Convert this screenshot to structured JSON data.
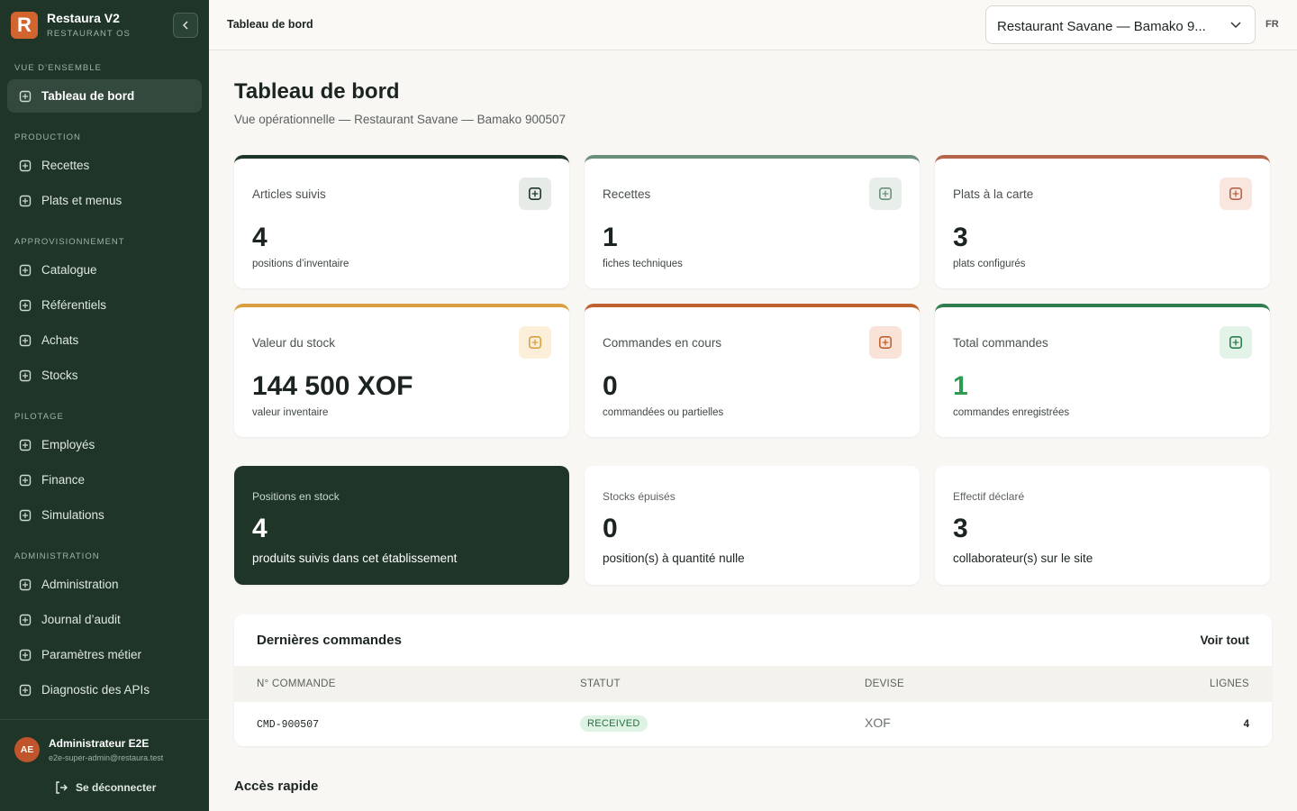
{
  "sidebar": {
    "logo": "R",
    "app_name": "Restaura V2",
    "app_subtitle": "RESTAURANT OS",
    "sections": [
      {
        "title": "VUE D’ENSEMBLE",
        "items": [
          "Tableau de bord"
        ]
      },
      {
        "title": "PRODUCTION",
        "items": [
          "Recettes",
          "Plats et menus"
        ]
      },
      {
        "title": "APPROVISIONNEMENT",
        "items": [
          "Catalogue",
          "Référentiels",
          "Achats",
          "Stocks"
        ]
      },
      {
        "title": "PILOTAGE",
        "items": [
          "Employés",
          "Finance",
          "Simulations"
        ]
      },
      {
        "title": "ADMINISTRATION",
        "items": [
          "Administration",
          "Journal d’audit",
          "Paramètres métier",
          "Diagnostic des APIs"
        ]
      }
    ],
    "user": {
      "initials": "AE",
      "name": "Administrateur E2E",
      "email": "e2e-super-admin@restaura.test",
      "logout": "Se déconnecter"
    }
  },
  "topbar": {
    "breadcrumb": "Tableau de bord",
    "restaurant_select": "Restaurant Savane — Bamako 9...",
    "language": "FR"
  },
  "header": {
    "title": "Tableau de bord",
    "subtitle": "Vue opérationnelle — Restaurant Savane — Bamako 900507"
  },
  "kpi_cards": [
    {
      "label": "Articles suivis",
      "value": 4,
      "caption": "positions d’inventaire"
    },
    {
      "label": "Recettes",
      "value": 1,
      "caption": "fiches techniques"
    },
    {
      "label": "Plats à la carte",
      "value": 3,
      "caption": "plats configurés"
    },
    {
      "label": "Valeur du stock",
      "value": "144 500 XOF",
      "caption": "valeur inventaire"
    },
    {
      "label": "Commandes en cours",
      "value": 0,
      "caption": "commandées ou partielles"
    },
    {
      "label": "Total commandes",
      "value": 1,
      "caption": "commandes enregistrées"
    }
  ],
  "summary_cards": [
    {
      "label": "Positions en stock",
      "value": 4,
      "caption": "produits suivis dans cet établissement"
    },
    {
      "label": "Stocks épuisés",
      "value": 0,
      "caption": "position(s) à quantité nulle"
    },
    {
      "label": "Effectif déclaré",
      "value": 3,
      "caption": "collaborateur(s) sur le site"
    }
  ],
  "orders_table": {
    "title": "Dernières commandes",
    "link": "Voir tout",
    "columns": [
      "N° COMMANDE",
      "STATUT",
      "DEVISE",
      "LIGNES"
    ],
    "rows": [
      [
        "CMD-900507",
        "RECEIVED",
        "XOF",
        4
      ]
    ]
  },
  "quick_access": {
    "title": "Accès rapide"
  }
}
